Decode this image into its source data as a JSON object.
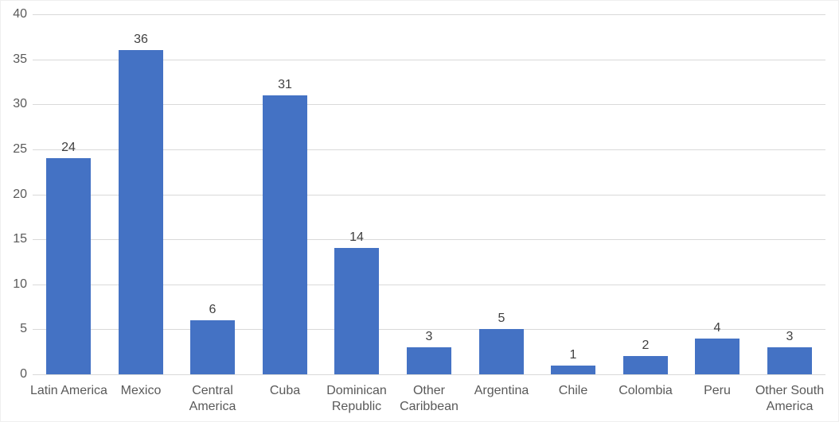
{
  "chart_data": {
    "type": "bar",
    "title": "",
    "xlabel": "",
    "ylabel": "",
    "categories": [
      "Latin America",
      "Mexico",
      "Central America",
      "Cuba",
      "Dominican Republic",
      "Other Caribbean",
      "Argentina",
      "Chile",
      "Colombia",
      "Peru",
      "Other South America"
    ],
    "category_label_lines": [
      [
        "Latin America"
      ],
      [
        "Mexico"
      ],
      [
        "Central",
        "America"
      ],
      [
        "Cuba"
      ],
      [
        "Dominican",
        "Republic"
      ],
      [
        "Other",
        "Caribbean"
      ],
      [
        "Argentina"
      ],
      [
        "Chile"
      ],
      [
        "Colombia"
      ],
      [
        "Peru"
      ],
      [
        "Other South",
        "America"
      ]
    ],
    "values": [
      24,
      36,
      6,
      31,
      14,
      3,
      5,
      1,
      2,
      4,
      3
    ],
    "data_labels": [
      "24",
      "36",
      "6",
      "31",
      "14",
      "3",
      "5",
      "1",
      "2",
      "4",
      "3"
    ],
    "ylim": [
      0,
      40
    ],
    "yticks": [
      0,
      5,
      10,
      15,
      20,
      25,
      30,
      35,
      40
    ],
    "grid": true,
    "legend": "none",
    "colors": {
      "bar": "#4472C4",
      "gridline": "#D9D9D9",
      "axis_line": "#D9D9D9",
      "tick_label": "#595959",
      "category_label": "#595959",
      "data_label": "#404040",
      "background": "#FFFFFF",
      "chart_border": "#EFEFEF"
    }
  }
}
